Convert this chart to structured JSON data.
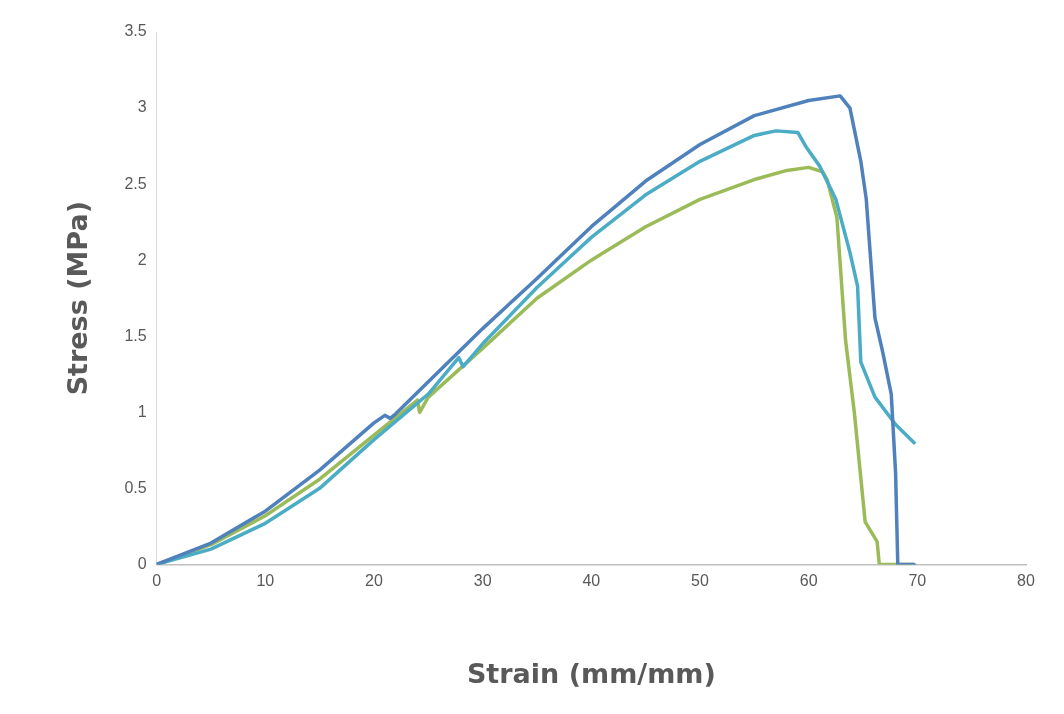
{
  "chart_data": {
    "type": "line",
    "xlabel": "Strain (mm/mm)",
    "ylabel": "Stress (MPa)",
    "xlim": [
      0,
      80
    ],
    "xticks": [
      0,
      10,
      20,
      30,
      40,
      50,
      60,
      70,
      80
    ],
    "ylim": [
      0,
      3.5
    ],
    "yticks": [
      0,
      0.5,
      1,
      1.5,
      2,
      2.5,
      3,
      3.5
    ],
    "grid": false,
    "legend": false,
    "marker": "none",
    "line_style": "solid",
    "series": [
      {
        "color": "#4f81bd",
        "x": [
          0,
          5,
          10,
          15,
          20,
          21,
          21.5,
          22,
          25,
          30,
          35,
          40,
          45,
          50,
          55,
          60,
          62.9,
          63.8,
          64.8,
          65.3,
          66.1,
          66.8,
          67.6,
          68,
          68.2,
          69.7
        ],
        "values": [
          0,
          0.14,
          0.35,
          0.62,
          0.93,
          0.98,
          0.96,
          0.99,
          1.2,
          1.55,
          1.88,
          2.22,
          2.52,
          2.76,
          2.95,
          3.05,
          3.08,
          3.0,
          2.65,
          2.4,
          1.62,
          1.4,
          1.12,
          0.6,
          0,
          0
        ]
      },
      {
        "color": "#4bacc6",
        "x": [
          0,
          5,
          10,
          15,
          20,
          25,
          27.8,
          28.2,
          30,
          35,
          40,
          45,
          50,
          55,
          57,
          59,
          59.8,
          61,
          62.5,
          63.8,
          64.5,
          64.8,
          66.1,
          68,
          69.7
        ],
        "values": [
          0,
          0.1,
          0.27,
          0.5,
          0.82,
          1.12,
          1.36,
          1.3,
          1.45,
          1.82,
          2.15,
          2.43,
          2.65,
          2.82,
          2.85,
          2.84,
          2.74,
          2.62,
          2.4,
          2.05,
          1.83,
          1.33,
          1.1,
          0.92,
          0.8
        ]
      },
      {
        "color": "#9bbb59",
        "x": [
          0,
          5,
          10,
          15,
          20,
          24,
          24.2,
          25,
          30,
          35,
          40,
          45,
          50,
          55,
          58,
          60,
          61.3,
          61.7,
          62.6,
          63.4,
          64.2,
          65.2,
          66.3,
          66.5,
          69.7
        ],
        "values": [
          0,
          0.13,
          0.32,
          0.56,
          0.85,
          1.08,
          1.0,
          1.1,
          1.42,
          1.75,
          2.0,
          2.22,
          2.4,
          2.53,
          2.59,
          2.61,
          2.58,
          2.53,
          2.28,
          1.47,
          1.0,
          0.28,
          0.15,
          0,
          0
        ]
      }
    ]
  }
}
